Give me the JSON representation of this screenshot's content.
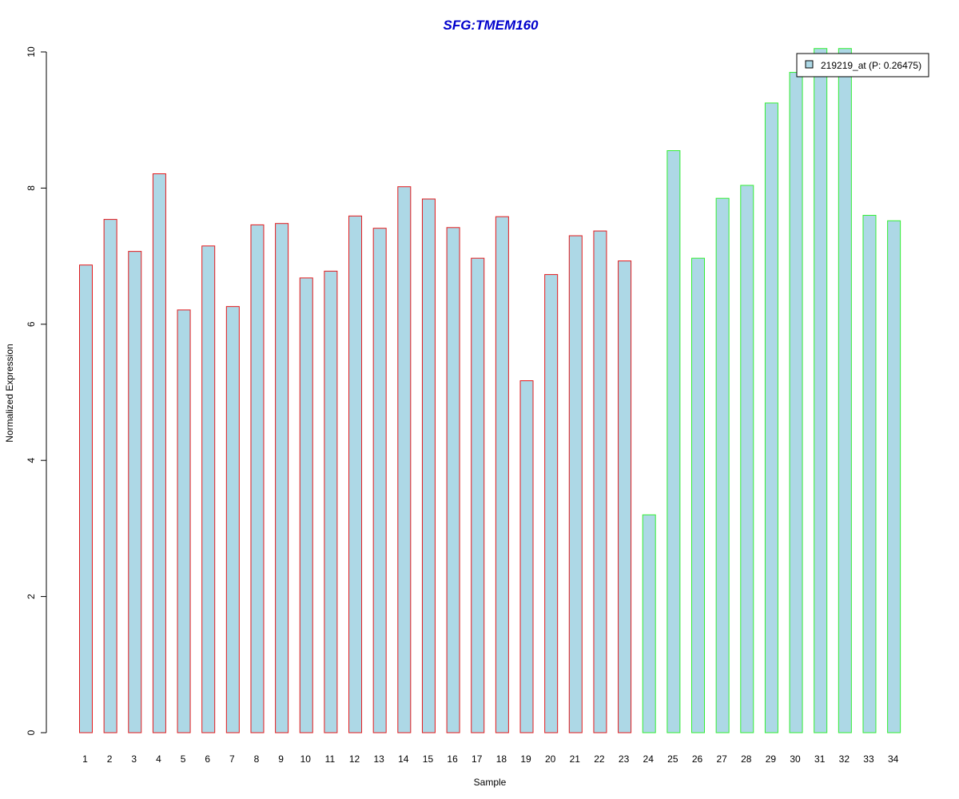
{
  "chart_data": {
    "type": "bar",
    "title": "SFG:TMEM160",
    "xlabel": "Sample",
    "ylabel": "Normalized Expression",
    "ylim": [
      0,
      10
    ],
    "yticks": [
      "0",
      "2",
      "4",
      "6",
      "8",
      "10"
    ],
    "categories": [
      "1",
      "2",
      "3",
      "4",
      "5",
      "6",
      "7",
      "8",
      "9",
      "10",
      "11",
      "12",
      "13",
      "14",
      "15",
      "16",
      "17",
      "18",
      "19",
      "20",
      "21",
      "22",
      "23",
      "24",
      "25",
      "26",
      "27",
      "28",
      "29",
      "30",
      "31",
      "32",
      "33",
      "34"
    ],
    "series": [
      {
        "name": "219219_at (P: 0.26475)",
        "values": [
          6.87,
          7.54,
          7.07,
          8.21,
          6.21,
          7.15,
          6.26,
          7.46,
          7.48,
          6.68,
          6.78,
          7.59,
          7.41,
          8.02,
          7.84,
          7.42,
          6.97,
          7.58,
          5.17,
          6.73,
          7.3,
          7.37,
          6.93,
          3.2,
          8.55,
          6.97,
          7.85,
          8.04,
          9.25,
          9.7,
          10.05,
          10.05,
          7.6,
          7.52
        ]
      }
    ],
    "bar_groups": [
      "red",
      "red",
      "red",
      "red",
      "red",
      "red",
      "red",
      "red",
      "red",
      "red",
      "red",
      "red",
      "red",
      "red",
      "red",
      "red",
      "red",
      "red",
      "red",
      "red",
      "red",
      "red",
      "red",
      "green",
      "green",
      "green",
      "green",
      "green",
      "green",
      "green",
      "green",
      "green",
      "green",
      "green"
    ],
    "legend_position": "top-right",
    "grid": false,
    "colors": {
      "title": "#0000cc",
      "bar_fill": "#add8e6",
      "red_border": "#e31a1c",
      "green_border": "#33ee33",
      "axis": "#000000"
    }
  }
}
